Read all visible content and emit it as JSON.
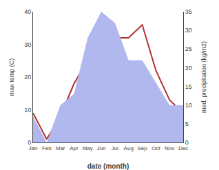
{
  "chart_data": {
    "type": "line",
    "xlabel": "date (month)",
    "ylabel": "max temp (C)",
    "y2label": "med. precipitation (kg/m2)",
    "categories": [
      "Jan",
      "Feb",
      "Mar",
      "Apr",
      "May",
      "Jun",
      "Jul",
      "Aug",
      "Sep",
      "Oct",
      "Nov",
      "Dec"
    ],
    "series": [
      {
        "type": "area",
        "axis": "y2",
        "color": "#b0b8ee",
        "values": [
          7,
          0,
          10,
          13,
          28,
          35,
          32,
          22,
          22,
          16,
          10,
          10
        ]
      },
      {
        "type": "line",
        "color": "#b03030",
        "values": [
          9,
          1,
          8,
          18,
          25,
          33,
          32,
          32,
          36,
          22,
          13,
          9
        ]
      }
    ],
    "ylim": [
      0,
      40
    ],
    "yticks": [
      0,
      10,
      20,
      30,
      40
    ],
    "y2lim": [
      0,
      35
    ],
    "y2ticks": [
      0,
      5,
      10,
      15,
      20,
      25,
      30,
      35
    ],
    "grid": false
  }
}
